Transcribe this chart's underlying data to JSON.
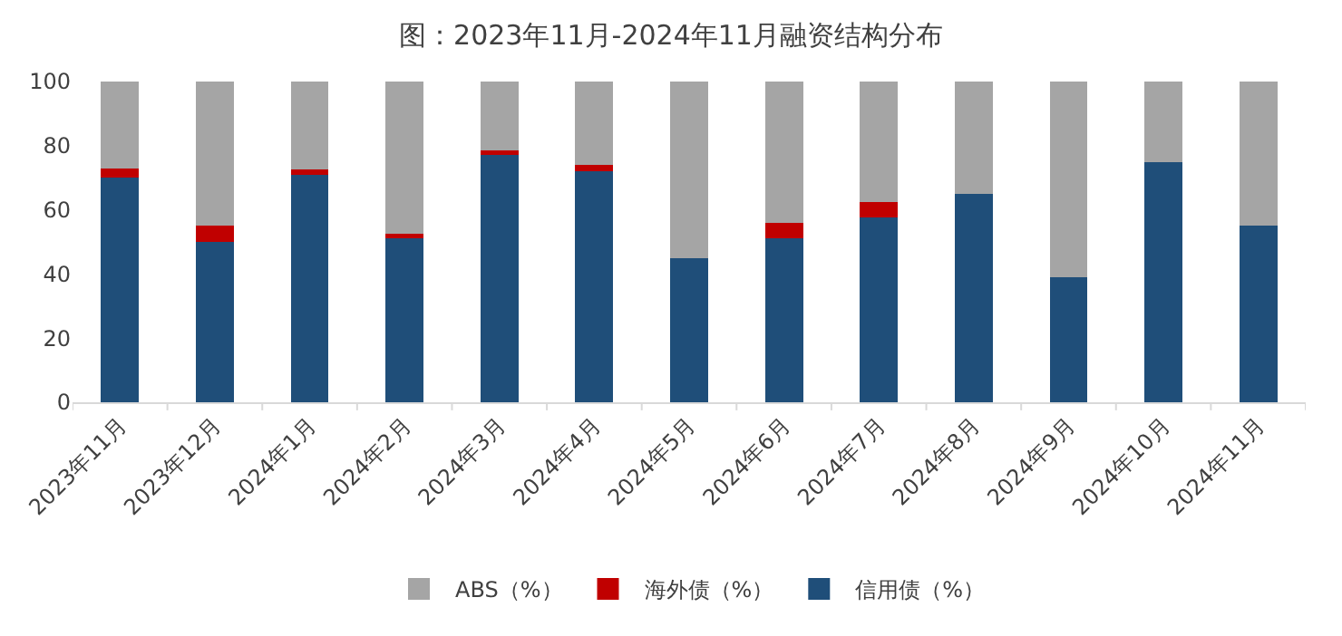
{
  "chart_data": {
    "type": "bar",
    "stacked": true,
    "title": "图：2023年11月-2024年11月融资结构分布",
    "categories": [
      "2023年11月",
      "2023年12月",
      "2024年1月",
      "2024年2月",
      "2024年3月",
      "2024年4月",
      "2024年5月",
      "2024年6月",
      "2024年7月",
      "2024年8月",
      "2024年9月",
      "2024年10月",
      "2024年11月"
    ],
    "series": [
      {
        "name": "信用债（%）",
        "color": "#1f4e79",
        "values": [
          70,
          50,
          71,
          51,
          77,
          72,
          45,
          51,
          57.5,
          65,
          39,
          75,
          55
        ]
      },
      {
        "name": "海外债（%）",
        "color": "#c00000",
        "values": [
          3,
          5,
          1.5,
          1.5,
          1.5,
          2,
          0,
          5,
          5,
          0,
          0,
          0,
          0
        ]
      },
      {
        "name": "ABS（%）",
        "color": "#a5a5a5",
        "values": [
          27,
          45,
          27.5,
          47.5,
          21.5,
          26,
          55,
          44,
          37.5,
          35,
          61,
          25,
          45
        ]
      }
    ],
    "ylim": [
      0,
      100
    ],
    "yticks": [
      0,
      20,
      40,
      60,
      80,
      100
    ],
    "grid": false,
    "legend": "bottom"
  }
}
